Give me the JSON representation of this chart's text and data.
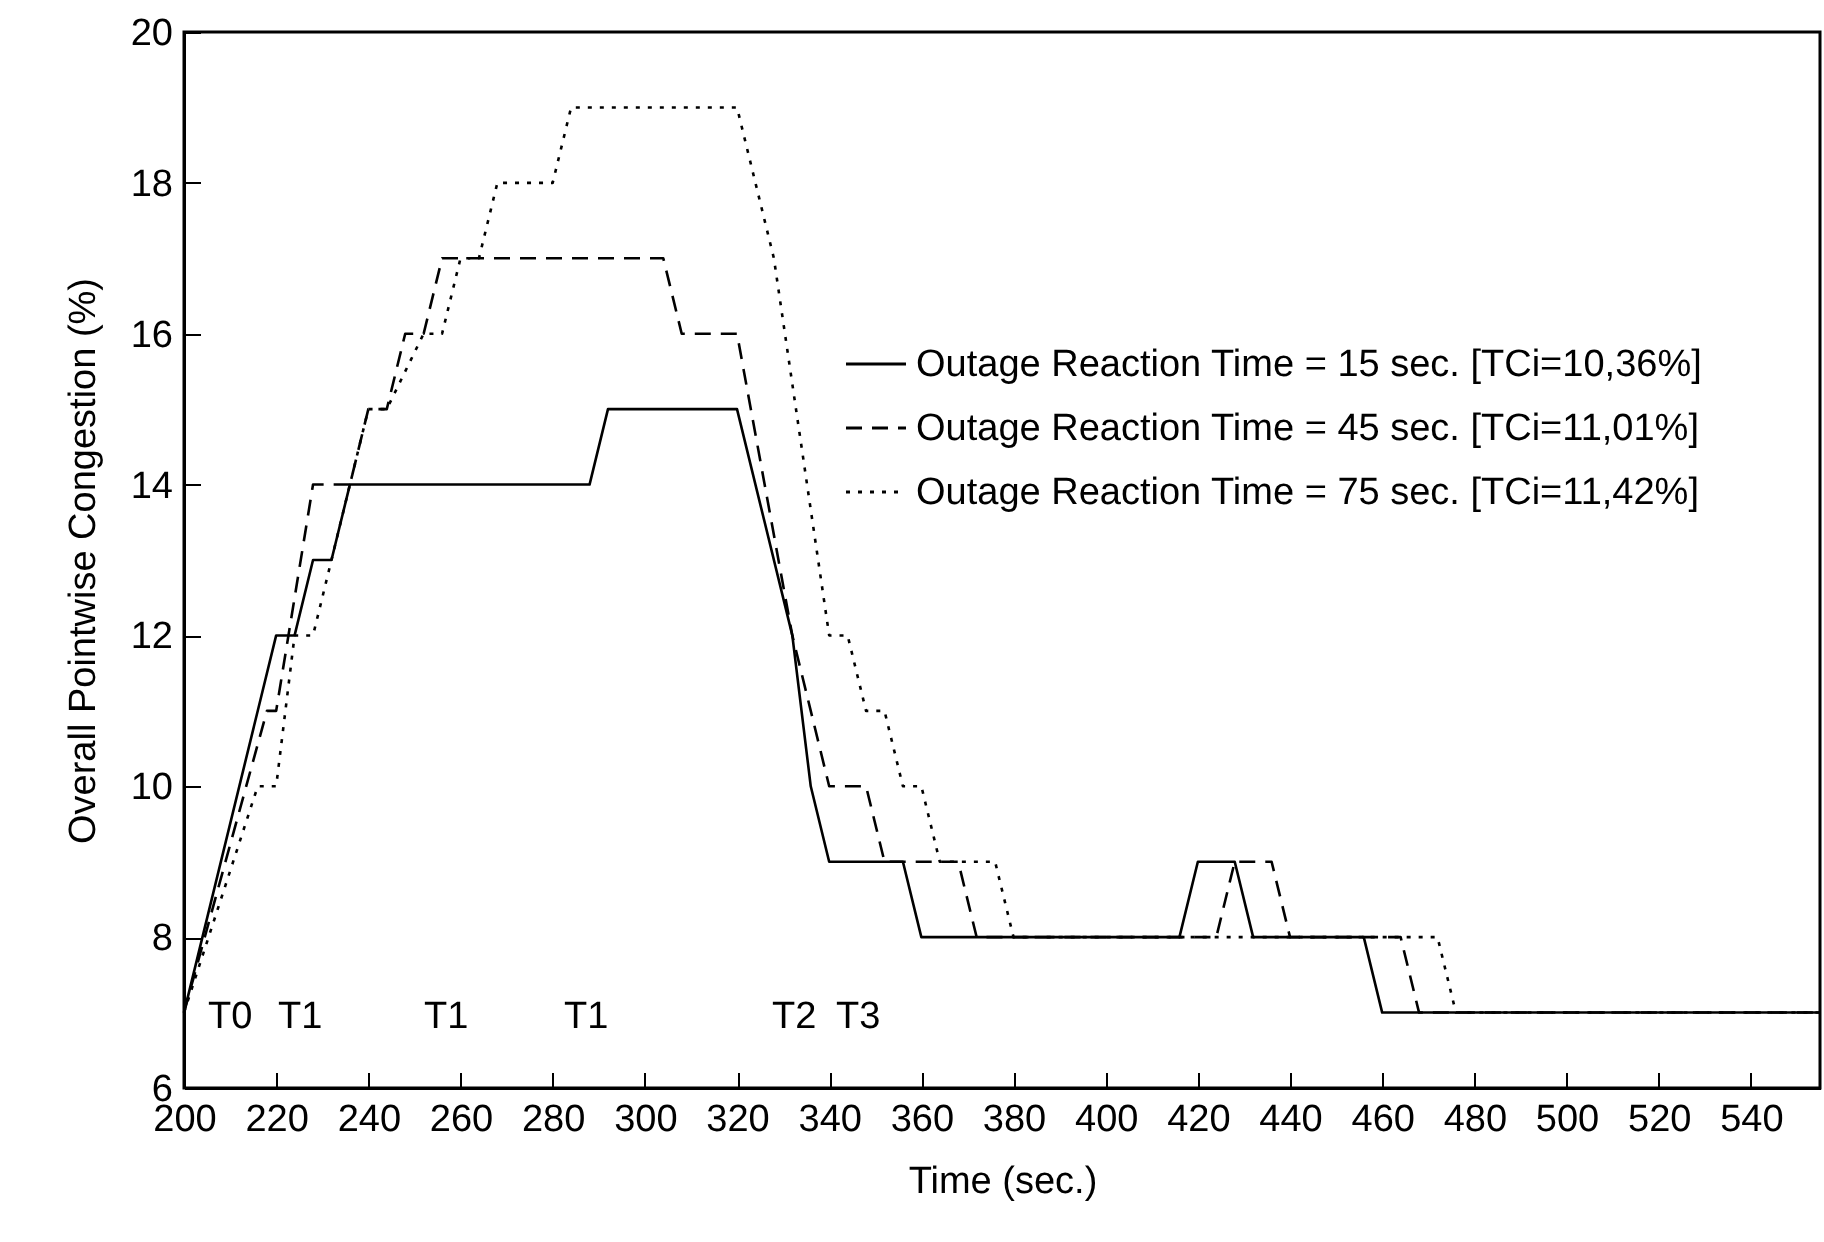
{
  "chart_data": {
    "type": "line",
    "xlabel": "Time (sec.)",
    "ylabel": "Overall Pointwise Congestion (%)",
    "xlim": [
      200,
      555
    ],
    "xticks": [
      200,
      220,
      240,
      260,
      280,
      300,
      320,
      340,
      360,
      380,
      400,
      420,
      440,
      460,
      480,
      500,
      520,
      540
    ],
    "ylim": [
      6,
      20
    ],
    "yticks": [
      6,
      8,
      10,
      12,
      14,
      16,
      18,
      20
    ],
    "legend": "top right",
    "grid": false,
    "marker": "none",
    "series": [
      {
        "name": "Outage Reaction Time = 15 sec. [TCi=10,36%]",
        "color": "#000000",
        "line_style": "solid",
        "x": [
          200,
          220,
          224,
          228,
          232,
          236,
          288,
          292,
          320,
          332,
          336,
          340,
          356,
          360,
          416,
          420,
          428,
          432,
          456,
          460,
          555
        ],
        "values": [
          7,
          12,
          12,
          13,
          13,
          14,
          14,
          15,
          15,
          12,
          10,
          9,
          9,
          8,
          8,
          9,
          9,
          8,
          8,
          7,
          7
        ]
      },
      {
        "name": "Outage Reaction Time = 45 sec. [TCi=11,01%]",
        "color": "#000000",
        "line_style": "dashed",
        "x": [
          200,
          218,
          220,
          228,
          236,
          240,
          244,
          248,
          252,
          256,
          304,
          308,
          320,
          332,
          340,
          348,
          352,
          368,
          372,
          424,
          428,
          436,
          440,
          464,
          468,
          555
        ],
        "values": [
          7,
          11,
          11,
          14,
          14,
          15,
          15,
          16,
          16,
          17,
          17,
          16,
          16,
          12,
          10,
          10,
          9,
          9,
          8,
          8,
          9,
          9,
          8,
          8,
          7,
          7
        ]
      },
      {
        "name": "Outage Reaction Time = 75 sec. [TCi=11,42%]",
        "color": "#000000",
        "line_style": "dotted",
        "x": [
          200,
          216,
          220,
          224,
          228,
          240,
          244,
          252,
          256,
          260,
          264,
          268,
          280,
          284,
          320,
          324,
          328,
          340,
          344,
          348,
          352,
          356,
          360,
          364,
          376,
          380,
          472,
          476,
          555
        ],
        "values": [
          7,
          10,
          10,
          12,
          12,
          15,
          15,
          16,
          16,
          17,
          17,
          18,
          18,
          19,
          19,
          18,
          17,
          12,
          12,
          11,
          11,
          10,
          10,
          9,
          9,
          8,
          8,
          7,
          7
        ]
      }
    ],
    "annotations": [
      "T0",
      "T1",
      "T1",
      "T1",
      "T2",
      "T3"
    ]
  }
}
